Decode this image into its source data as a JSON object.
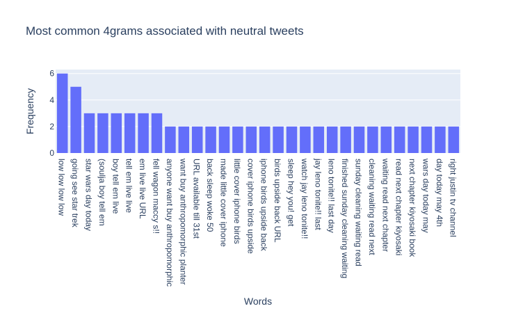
{
  "chart_data": {
    "type": "bar",
    "title": "Most common 4grams associated with neutral tweets",
    "xlabel": "Words",
    "ylabel": "Frequency",
    "ylim": [
      0,
      6.3
    ],
    "yticks": [
      0,
      2,
      4,
      6
    ],
    "grid": true,
    "bar_color": "#636efa",
    "plot_bg": "#e5ecf6",
    "categories": [
      "low low low low",
      "going see star trek",
      "star wars day today",
      "(soulja boy tell em",
      "boy tell em live",
      "tell em live live",
      "em live live URL",
      "fell wagon maccy s!!",
      "anyone want buy anthropomorphic",
      "want buy anthropomorphic planter",
      "URL available till 31st",
      "back sleep woke 50",
      "made little cover iphone",
      "little cover iphone birds",
      "cover iphone birds upside",
      "iphone birds upside back",
      "birds upside back URL",
      "sleep hey you! get",
      "watch jay leno tonite!!",
      "jay leno tonite!! last",
      "leno tonite!! last day",
      "finished sunday cleaning waiting",
      "sunday cleaning waiting read",
      "cleaning waiting read next",
      "waiting read next chapter",
      "read next chapter kiyosaki",
      "next chapter kiyosaki book",
      "wars day today may",
      "day today may 4th",
      "right justin tv channel"
    ],
    "values": [
      6,
      5,
      3,
      3,
      3,
      3,
      3,
      3,
      2,
      2,
      2,
      2,
      2,
      2,
      2,
      2,
      2,
      2,
      2,
      2,
      2,
      2,
      2,
      2,
      2,
      2,
      2,
      2,
      2,
      2
    ]
  }
}
